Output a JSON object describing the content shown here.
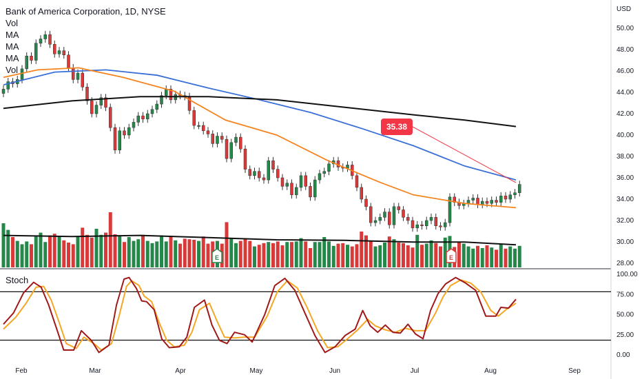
{
  "header": {
    "title": "Bank of America Corporation, 1D, NYSE",
    "indicators": [
      "Vol",
      "MA",
      "MA",
      "MA",
      "Vol"
    ]
  },
  "currency": "USD",
  "price_tag": "35.38",
  "oscillator_label": "Stoch",
  "colors": {
    "up": "#26874a",
    "down": "#d83a3a",
    "ma_blue": "#3a6fd8",
    "ma_orange": "#f5841f",
    "ma_black": "#111111",
    "stoch_k": "#a01818",
    "stoch_d": "#f5a623",
    "tag": "#f23645"
  },
  "chart_data": [
    {
      "type": "candlestick",
      "title": "Bank of America Corporation, 1D, NYSE",
      "x_ticks": [
        "Feb",
        "Mar",
        "Apr",
        "May",
        "Jun",
        "Jul",
        "Aug",
        "Sep"
      ],
      "y_ticks": [
        "50.00",
        "48.00",
        "46.00",
        "44.00",
        "42.00",
        "40.00",
        "38.00",
        "36.00",
        "34.00",
        "32.00",
        "30.00",
        "28.00"
      ],
      "ylim": [
        27.7,
        51.7
      ],
      "grid": false,
      "close": [
        44.3,
        45.0,
        44.8,
        45.2,
        46.2,
        47.4,
        47.0,
        48.6,
        49.0,
        49.4,
        48.5,
        47.6,
        47.9,
        47.5,
        46.3,
        45.2,
        45.8,
        44.5,
        43.2,
        42.0,
        42.8,
        43.5,
        42.6,
        40.7,
        38.6,
        40.4,
        40.0,
        40.7,
        41.2,
        41.8,
        41.5,
        42.0,
        42.4,
        42.9,
        43.7,
        44.3,
        43.3,
        43.8,
        43.7,
        43.6,
        42.3,
        40.9,
        40.9,
        40.4,
        40.1,
        39.2,
        39.9,
        39.6,
        37.8,
        39.3,
        39.8,
        38.7,
        36.8,
        36.2,
        36.6,
        36.0,
        35.8,
        37.6,
        36.8,
        36.0,
        35.2,
        35.5,
        34.4,
        35.1,
        36.2,
        35.2,
        34.2,
        35.8,
        36.4,
        36.6,
        37.3,
        37.6,
        37.0,
        36.9,
        37.2,
        36.2,
        35.1,
        34.0,
        33.3,
        31.8,
        32.0,
        32.3,
        32.8,
        31.6,
        33.3,
        33.0,
        32.3,
        32.0,
        31.3,
        31.6,
        31.5,
        32.0,
        32.3,
        31.5,
        31.4,
        31.8,
        34.2,
        33.7,
        33.4,
        33.6,
        33.9,
        34.1,
        33.5,
        33.8,
        33.6,
        33.9,
        33.7,
        34.3,
        34.0,
        34.4,
        34.6,
        35.38
      ],
      "volume": [
        8.0,
        6.8,
        5.5,
        4.8,
        4.2,
        4.7,
        4.2,
        5.6,
        6.3,
        4.6,
        5.8,
        6.1,
        5.6,
        4.9,
        4.5,
        4.2,
        5.7,
        7.2,
        5.9,
        5.4,
        7.0,
        5.9,
        6.3,
        10.0,
        6.0,
        5.8,
        4.6,
        5.5,
        4.8,
        5.1,
        5.9,
        4.8,
        4.4,
        4.7,
        5.8,
        4.7,
        5.6,
        4.9,
        4.3,
        5.2,
        5.1,
        5.0,
        4.8,
        5.6,
        4.3,
        4.7,
        4.8,
        4.3,
        8.2,
        5.3,
        4.4,
        4.8,
        5.2,
        4.8,
        3.8,
        4.1,
        4.4,
        4.6,
        4.4,
        4.7,
        4.0,
        4.6,
        4.6,
        4.7,
        5.3,
        4.7,
        3.5,
        4.6,
        4.6,
        5.5,
        4.7,
        3.9,
        4.3,
        4.4,
        4.1,
        3.8,
        4.2,
        6.5,
        5.8,
        4.7,
        3.8,
        4.0,
        4.5,
        5.6,
        5.1,
        4.5,
        4.4,
        4.0,
        3.6,
        5.9,
        4.1,
        4.3,
        4.9,
        4.4,
        3.8,
        5.4,
        5.7,
        3.7,
        4.5,
        4.3,
        3.8,
        3.4,
        3.9,
        3.5,
        4.0,
        3.6,
        3.2,
        4.3,
        3.4,
        3.8,
        3.4,
        3.9
      ],
      "ma_series": [
        {
          "color": "blue",
          "values": [
            [
              0,
              44.7
            ],
            [
              15,
              45.9
            ],
            [
              30,
              46.1
            ],
            [
              45,
              45.6
            ],
            [
              60,
              44.4
            ],
            [
              75,
              43.3
            ],
            [
              90,
              42.1
            ],
            [
              105,
              40.6
            ],
            [
              120,
              39.0
            ],
            [
              135,
              37.1
            ],
            [
              150,
              35.8
            ]
          ]
        },
        {
          "color": "orange",
          "values": [
            [
              0,
              45.4
            ],
            [
              10,
              46.1
            ],
            [
              22,
              46.3
            ],
            [
              35,
              45.4
            ],
            [
              50,
              44.1
            ],
            [
              65,
              41.4
            ],
            [
              80,
              40.0
            ],
            [
              95,
              37.6
            ],
            [
              110,
              35.6
            ],
            [
              120,
              34.4
            ],
            [
              135,
              33.6
            ],
            [
              150,
              33.2
            ]
          ]
        },
        {
          "color": "black",
          "values": [
            [
              0,
              42.5
            ],
            [
              20,
              43.2
            ],
            [
              40,
              43.6
            ],
            [
              60,
              43.6
            ],
            [
              80,
              43.3
            ],
            [
              100,
              42.6
            ],
            [
              120,
              41.9
            ],
            [
              135,
              41.4
            ],
            [
              150,
              40.8
            ]
          ]
        },
        {
          "color": "volume-ma",
          "values": [
            [
              0,
              5.8
            ],
            [
              20,
              5.6
            ],
            [
              40,
              5.8
            ],
            [
              60,
              5.4
            ],
            [
              80,
              5.0
            ],
            [
              100,
              4.9
            ],
            [
              120,
              4.6
            ],
            [
              135,
              4.6
            ],
            [
              150,
              4.1
            ]
          ]
        }
      ]
    },
    {
      "type": "line",
      "title": "Stoch",
      "y_ticks": [
        "100.00",
        "75.00",
        "50.00",
        "25.00",
        "0.00"
      ],
      "ylim": [
        0,
        100
      ],
      "levels": [
        80,
        20
      ],
      "series": [
        {
          "values": [
            [
              0,
              38
            ],
            [
              4,
              52
            ],
            [
              8,
              77
            ],
            [
              12,
              90
            ],
            [
              15,
              84
            ],
            [
              18,
              62
            ],
            [
              21,
              34
            ],
            [
              24,
              6
            ],
            [
              28,
              6
            ],
            [
              31,
              30
            ],
            [
              35,
              18
            ],
            [
              38,
              3
            ],
            [
              42,
              12
            ],
            [
              45,
              62
            ],
            [
              48,
              94
            ],
            [
              50,
              96
            ],
            [
              53,
              82
            ],
            [
              55,
              67
            ],
            [
              57,
              66
            ],
            [
              60,
              56
            ],
            [
              63,
              20
            ],
            [
              66,
              9
            ],
            [
              70,
              10
            ],
            [
              73,
              22
            ],
            [
              76,
              59
            ],
            [
              80,
              68
            ],
            [
              83,
              37
            ],
            [
              86,
              18
            ],
            [
              89,
              14
            ],
            [
              92,
              28
            ],
            [
              96,
              25
            ],
            [
              99,
              16
            ],
            [
              104,
              50
            ],
            [
              108,
              86
            ],
            [
              112,
              95
            ],
            [
              116,
              80
            ],
            [
              120,
              52
            ],
            [
              124,
              24
            ],
            [
              128,
              3
            ],
            [
              132,
              10
            ],
            [
              136,
              24
            ],
            [
              140,
              32
            ],
            [
              143,
              55
            ],
            [
              146,
              36
            ],
            [
              149,
              28
            ],
            [
              152,
              37
            ],
            [
              155,
              28
            ],
            [
              158,
              27
            ],
            [
              161,
              38
            ],
            [
              164,
              26
            ],
            [
              167,
              20
            ],
            [
              170,
              55
            ],
            [
              173,
              76
            ],
            [
              176,
              88
            ],
            [
              180,
              96
            ],
            [
              184,
              89
            ],
            [
              188,
              80
            ],
            [
              192,
              48
            ],
            [
              196,
              48
            ],
            [
              198,
              59
            ],
            [
              201,
              58
            ],
            [
              204,
              69
            ]
          ]
        },
        {
          "values": [
            [
              0,
              32
            ],
            [
              5,
              47
            ],
            [
              9,
              64
            ],
            [
              13,
              84
            ],
            [
              16,
              85
            ],
            [
              19,
              68
            ],
            [
              22,
              42
            ],
            [
              25,
              14
            ],
            [
              29,
              8
            ],
            [
              32,
              22
            ],
            [
              36,
              14
            ],
            [
              39,
              6
            ],
            [
              43,
              14
            ],
            [
              46,
              48
            ],
            [
              49,
              85
            ],
            [
              51,
              92
            ],
            [
              54,
              86
            ],
            [
              56,
              73
            ],
            [
              59,
              66
            ],
            [
              62,
              40
            ],
            [
              65,
              18
            ],
            [
              68,
              10
            ],
            [
              72,
              12
            ],
            [
              75,
              28
            ],
            [
              78,
              56
            ],
            [
              82,
              64
            ],
            [
              85,
              42
            ],
            [
              88,
              22
            ],
            [
              92,
              21
            ],
            [
              96,
              22
            ],
            [
              100,
              22
            ],
            [
              105,
              48
            ],
            [
              109,
              78
            ],
            [
              113,
              92
            ],
            [
              117,
              83
            ],
            [
              121,
              58
            ],
            [
              125,
              30
            ],
            [
              129,
              9
            ],
            [
              133,
              10
            ],
            [
              137,
              20
            ],
            [
              141,
              31
            ],
            [
              145,
              44
            ],
            [
              148,
              36
            ],
            [
              152,
              31
            ],
            [
              156,
              28
            ],
            [
              160,
              33
            ],
            [
              164,
              30
            ],
            [
              168,
              30
            ],
            [
              172,
              52
            ],
            [
              175,
              72
            ],
            [
              178,
              86
            ],
            [
              182,
              93
            ],
            [
              186,
              89
            ],
            [
              190,
              78
            ],
            [
              194,
              55
            ],
            [
              197,
              48
            ],
            [
              200,
              56
            ],
            [
              204,
              64
            ]
          ]
        }
      ]
    }
  ],
  "events": [
    "E",
    "E"
  ]
}
